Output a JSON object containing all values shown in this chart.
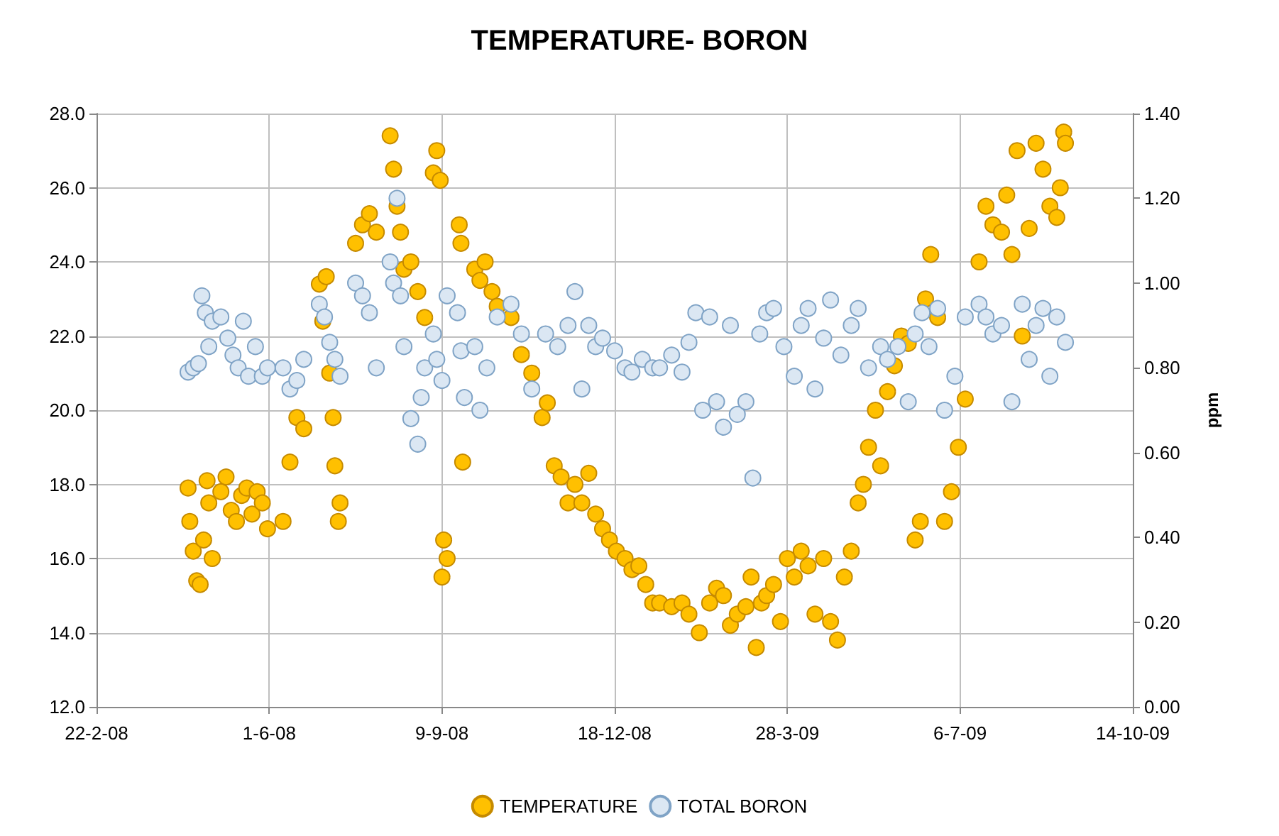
{
  "chart_data": {
    "type": "scatter",
    "title": "TEMPERATURE- BORON",
    "y2label": "ppm",
    "marker": "circle",
    "grid": true,
    "legend": "bottom",
    "xlim": [
      "2008-02-22",
      "2009-10-14"
    ],
    "xticks": [
      {
        "value": "2008-02-22",
        "label": "22-2-08"
      },
      {
        "value": "2008-06-01",
        "label": "1-6-08"
      },
      {
        "value": "2008-09-09",
        "label": "9-9-08"
      },
      {
        "value": "2008-12-18",
        "label": "18-12-08"
      },
      {
        "value": "2009-03-28",
        "label": "28-3-09"
      },
      {
        "value": "2009-07-06",
        "label": "6-7-09"
      },
      {
        "value": "2009-10-14",
        "label": "14-10-09"
      }
    ],
    "ylim": [
      12,
      28
    ],
    "yticks": [
      {
        "value": 12,
        "label": "12.0"
      },
      {
        "value": 14,
        "label": "14.0"
      },
      {
        "value": 16,
        "label": "16.0"
      },
      {
        "value": 18,
        "label": "18.0"
      },
      {
        "value": 20,
        "label": "20.0"
      },
      {
        "value": 22,
        "label": "22.0"
      },
      {
        "value": 24,
        "label": "24.0"
      },
      {
        "value": 26,
        "label": "26.0"
      },
      {
        "value": 28,
        "label": "28.0"
      }
    ],
    "y2lim": [
      0,
      1.4
    ],
    "y2ticks": [
      {
        "value": 0,
        "label": "0.00"
      },
      {
        "value": 0.2,
        "label": "0.20"
      },
      {
        "value": 0.4,
        "label": "0.40"
      },
      {
        "value": 0.6,
        "label": "0.60"
      },
      {
        "value": 0.8,
        "label": "0.80"
      },
      {
        "value": 1,
        "label": "1.00"
      },
      {
        "value": 1.2,
        "label": "1.20"
      },
      {
        "value": 1.4,
        "label": "1.40"
      }
    ],
    "series": [
      {
        "name": "TEMPERATURE",
        "color": "#ffc000",
        "x": [
          "2008-04-15",
          "2008-04-16",
          "2008-04-18",
          "2008-04-20",
          "2008-04-22",
          "2008-04-24",
          "2008-04-26",
          "2008-04-27",
          "2008-04-29",
          "2008-05-04",
          "2008-05-07",
          "2008-05-10",
          "2008-05-13",
          "2008-05-16",
          "2008-05-19",
          "2008-05-22",
          "2008-05-25",
          "2008-05-28",
          "2008-05-31",
          "2008-06-09",
          "2008-06-13",
          "2008-06-17",
          "2008-06-21",
          "2008-06-30",
          "2008-07-02",
          "2008-07-04",
          "2008-07-06",
          "2008-07-08",
          "2008-07-09",
          "2008-07-11",
          "2008-07-12",
          "2008-07-21",
          "2008-07-25",
          "2008-07-29",
          "2008-08-02",
          "2008-08-10",
          "2008-08-12",
          "2008-08-14",
          "2008-08-16",
          "2008-08-18",
          "2008-08-22",
          "2008-08-26",
          "2008-08-30",
          "2008-09-04",
          "2008-09-06",
          "2008-09-08",
          "2008-09-09",
          "2008-09-10",
          "2008-09-12",
          "2008-09-19",
          "2008-09-20",
          "2008-09-21",
          "2008-09-28",
          "2008-10-01",
          "2008-10-04",
          "2008-10-08",
          "2008-10-11",
          "2008-10-19",
          "2008-10-25",
          "2008-10-31",
          "2008-11-06",
          "2008-11-09",
          "2008-11-13",
          "2008-11-17",
          "2008-11-21",
          "2008-11-25",
          "2008-11-29",
          "2008-12-03",
          "2008-12-07",
          "2008-12-11",
          "2008-12-15",
          "2008-12-19",
          "2008-12-24",
          "2008-12-28",
          "2009-01-01",
          "2009-01-05",
          "2009-01-09",
          "2009-01-13",
          "2009-01-20",
          "2009-01-26",
          "2009-01-30",
          "2009-02-05",
          "2009-02-11",
          "2009-02-15",
          "2009-02-19",
          "2009-02-23",
          "2009-02-27",
          "2009-03-04",
          "2009-03-07",
          "2009-03-10",
          "2009-03-13",
          "2009-03-16",
          "2009-03-20",
          "2009-03-24",
          "2009-03-28",
          "2009-04-01",
          "2009-04-05",
          "2009-04-09",
          "2009-04-13",
          "2009-04-18",
          "2009-04-22",
          "2009-04-26",
          "2009-04-30",
          "2009-05-04",
          "2009-05-08",
          "2009-05-11",
          "2009-05-14",
          "2009-05-18",
          "2009-05-21",
          "2009-05-25",
          "2009-05-29",
          "2009-06-02",
          "2009-06-06",
          "2009-06-10",
          "2009-06-13",
          "2009-06-16",
          "2009-06-19",
          "2009-06-23",
          "2009-06-27",
          "2009-07-01",
          "2009-07-05",
          "2009-07-09",
          "2009-07-17",
          "2009-07-21",
          "2009-07-25",
          "2009-07-30",
          "2009-08-02",
          "2009-08-05",
          "2009-08-08",
          "2009-08-11",
          "2009-08-15",
          "2009-08-19",
          "2009-08-23",
          "2009-08-27",
          "2009-08-31",
          "2009-09-02",
          "2009-09-04",
          "2009-09-05"
        ],
        "values": [
          17.9,
          17.0,
          16.2,
          15.4,
          15.3,
          16.5,
          18.1,
          17.5,
          16.0,
          17.8,
          18.2,
          17.3,
          17.0,
          17.7,
          17.9,
          17.2,
          17.8,
          17.5,
          16.8,
          17.0,
          18.6,
          19.8,
          19.5,
          23.4,
          22.4,
          23.6,
          21.0,
          19.8,
          18.5,
          17.0,
          17.5,
          24.5,
          25.0,
          25.3,
          24.8,
          27.4,
          26.5,
          25.5,
          24.8,
          23.8,
          24.0,
          23.2,
          22.5,
          26.4,
          27.0,
          26.2,
          15.5,
          16.5,
          16.0,
          25.0,
          24.5,
          18.6,
          23.8,
          23.5,
          24.0,
          23.2,
          22.8,
          22.5,
          21.5,
          21.0,
          19.8,
          20.2,
          18.5,
          18.2,
          17.5,
          18.0,
          17.5,
          18.3,
          17.2,
          16.8,
          16.5,
          16.2,
          16.0,
          15.7,
          15.8,
          15.3,
          14.8,
          14.8,
          14.7,
          14.8,
          14.5,
          14.0,
          14.8,
          15.2,
          15.0,
          14.2,
          14.5,
          14.7,
          15.5,
          13.6,
          14.8,
          15.0,
          15.3,
          14.3,
          16.0,
          15.5,
          16.2,
          15.8,
          14.5,
          16.0,
          14.3,
          13.8,
          15.5,
          16.2,
          17.5,
          18.0,
          19.0,
          20.0,
          18.5,
          20.5,
          21.2,
          22.0,
          21.8,
          16.5,
          17.0,
          23.0,
          24.2,
          22.5,
          17.0,
          17.8,
          19.0,
          20.3,
          24.0,
          25.5,
          25.0,
          24.8,
          25.8,
          24.2,
          27.0,
          22.0,
          24.9,
          27.2,
          26.5,
          25.5,
          25.2,
          26.0,
          27.5,
          27.2
        ]
      },
      {
        "name": "TOTAL BORON",
        "color": "#dbe7f3",
        "axis": "y2",
        "x": [
          "2008-04-15",
          "2008-04-18",
          "2008-04-21",
          "2008-04-23",
          "2008-04-25",
          "2008-04-27",
          "2008-04-29",
          "2008-05-04",
          "2008-05-08",
          "2008-05-11",
          "2008-05-14",
          "2008-05-17",
          "2008-05-20",
          "2008-05-24",
          "2008-05-28",
          "2008-05-31",
          "2008-06-09",
          "2008-06-13",
          "2008-06-17",
          "2008-06-21",
          "2008-06-30",
          "2008-07-03",
          "2008-07-06",
          "2008-07-09",
          "2008-07-12",
          "2008-07-21",
          "2008-07-25",
          "2008-07-29",
          "2008-08-02",
          "2008-08-10",
          "2008-08-12",
          "2008-08-14",
          "2008-08-16",
          "2008-08-18",
          "2008-08-22",
          "2008-08-26",
          "2008-08-28",
          "2008-08-30",
          "2008-09-04",
          "2008-09-06",
          "2008-09-09",
          "2008-09-12",
          "2008-09-18",
          "2008-09-20",
          "2008-09-22",
          "2008-09-28",
          "2008-10-01",
          "2008-10-05",
          "2008-10-11",
          "2008-10-19",
          "2008-10-25",
          "2008-10-31",
          "2008-11-08",
          "2008-11-15",
          "2008-11-21",
          "2008-11-25",
          "2008-11-29",
          "2008-12-03",
          "2008-12-07",
          "2008-12-11",
          "2008-12-18",
          "2008-12-24",
          "2008-12-28",
          "2009-01-03",
          "2009-01-09",
          "2009-01-13",
          "2009-01-20",
          "2009-01-26",
          "2009-01-30",
          "2009-02-03",
          "2009-02-07",
          "2009-02-11",
          "2009-02-15",
          "2009-02-19",
          "2009-02-23",
          "2009-02-27",
          "2009-03-04",
          "2009-03-08",
          "2009-03-12",
          "2009-03-16",
          "2009-03-20",
          "2009-03-26",
          "2009-04-01",
          "2009-04-05",
          "2009-04-09",
          "2009-04-13",
          "2009-04-18",
          "2009-04-22",
          "2009-04-28",
          "2009-05-04",
          "2009-05-08",
          "2009-05-14",
          "2009-05-21",
          "2009-05-25",
          "2009-05-31",
          "2009-06-06",
          "2009-06-10",
          "2009-06-14",
          "2009-06-18",
          "2009-06-23",
          "2009-06-27",
          "2009-07-03",
          "2009-07-09",
          "2009-07-17",
          "2009-07-21",
          "2009-07-25",
          "2009-07-30",
          "2009-08-05",
          "2009-08-11",
          "2009-08-15",
          "2009-08-19",
          "2009-08-23",
          "2009-08-27",
          "2009-08-31",
          "2009-09-05"
        ],
        "values": [
          0.79,
          0.8,
          0.81,
          0.97,
          0.93,
          0.85,
          0.91,
          0.92,
          0.87,
          0.83,
          0.8,
          0.91,
          0.78,
          0.85,
          0.78,
          0.8,
          0.8,
          0.75,
          0.77,
          0.82,
          0.95,
          0.92,
          0.86,
          0.82,
          0.78,
          1.0,
          0.97,
          0.93,
          0.8,
          1.05,
          1.0,
          1.2,
          0.97,
          0.85,
          0.68,
          0.62,
          0.73,
          0.8,
          0.88,
          0.82,
          0.77,
          0.97,
          0.93,
          0.84,
          0.73,
          0.85,
          0.7,
          0.8,
          0.92,
          0.95,
          0.88,
          0.75,
          0.88,
          0.85,
          0.9,
          0.98,
          0.75,
          0.9,
          0.85,
          0.87,
          0.84,
          0.8,
          0.79,
          0.82,
          0.8,
          0.8,
          0.83,
          0.79,
          0.86,
          0.93,
          0.7,
          0.92,
          0.72,
          0.66,
          0.9,
          0.69,
          0.72,
          0.54,
          0.88,
          0.93,
          0.94,
          0.85,
          0.78,
          0.9,
          0.94,
          0.75,
          0.87,
          0.96,
          0.83,
          0.9,
          0.94,
          0.8,
          0.85,
          0.82,
          0.85,
          0.72,
          0.88,
          0.93,
          0.85,
          0.94,
          0.7,
          0.78,
          0.92,
          0.95,
          0.92,
          0.88,
          0.9,
          0.72,
          0.95,
          0.82,
          0.9,
          0.94,
          0.78,
          0.92,
          0.86
        ]
      }
    ]
  }
}
